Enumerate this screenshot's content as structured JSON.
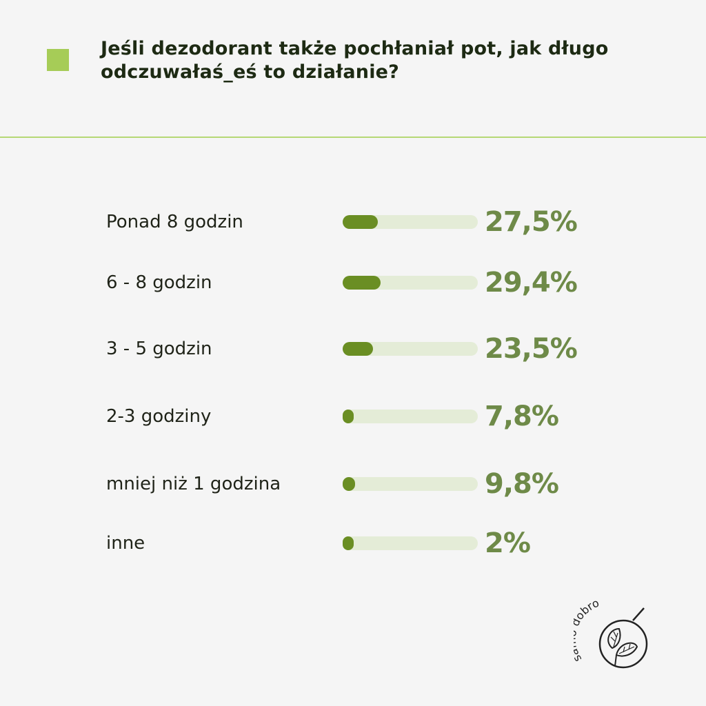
{
  "header": {
    "title_line1": "Jeśli dezodorant także pochłaniał pot, jak długo",
    "title_line2": "odczuwałaś_eś to działanie?"
  },
  "colors": {
    "accent": "#a6cc57",
    "bar_fill": "#6a8e23",
    "bar_track": "#e4ecd7",
    "percent_text": "#6e8a48",
    "text": "#1d2a13",
    "background": "#f5f5f5"
  },
  "chart_data": {
    "type": "bar",
    "orientation": "horizontal",
    "categories": [
      "Ponad 8 godzin",
      "6 - 8 godzin",
      "3 - 5 godzin",
      "2-3 godziny",
      "mniej niż 1 godzina",
      "inne"
    ],
    "values": [
      27.5,
      29.4,
      23.5,
      7.8,
      9.8,
      2
    ],
    "value_labels": [
      "27,5%",
      "29,4%",
      "23,5%",
      "7,8%",
      "9,8%",
      "2%"
    ],
    "unit": "%",
    "xlim": [
      0,
      100
    ]
  },
  "logo": {
    "text": "samo dobro"
  }
}
